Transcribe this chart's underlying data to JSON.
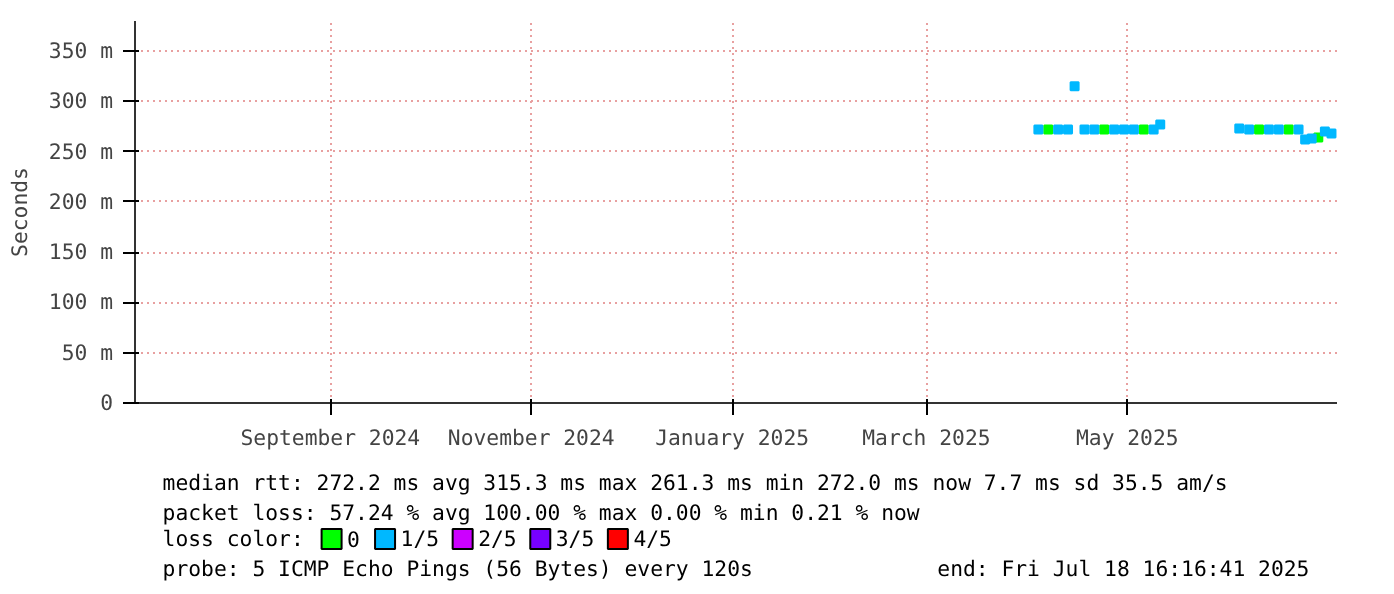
{
  "chart_data": {
    "type": "scatter",
    "ylabel": "Seconds",
    "xlim": [
      "2024-07-18T16:16",
      "2025-07-18T16:16"
    ],
    "xticks": [
      {
        "value": "2024-09-16",
        "label": "September 2024"
      },
      {
        "value": "2024-11-16",
        "label": "November 2024"
      },
      {
        "value": "2025-01-16",
        "label": "January 2025"
      },
      {
        "value": "2025-03-16",
        "label": "March 2025"
      },
      {
        "value": "2025-05-16",
        "label": "May 2025"
      }
    ],
    "ylim": [
      0,
      380
    ],
    "yticks": [
      {
        "value": 0,
        "label": "0"
      },
      {
        "value": 50,
        "label": "50 m"
      },
      {
        "value": 100,
        "label": "100 m"
      },
      {
        "value": 150,
        "label": "150 m"
      },
      {
        "value": 200,
        "label": "200 m"
      },
      {
        "value": 250,
        "label": "250 m"
      },
      {
        "value": 300,
        "label": "300 m"
      },
      {
        "value": 350,
        "label": "350 m"
      }
    ],
    "grid": true,
    "marker": "square",
    "legend": "bottom left",
    "legend_title": "loss color:",
    "series": [
      {
        "name": "0",
        "color": "#00ff00",
        "x": [
          "2025-04-22",
          "2025-05-09",
          "2025-05-21",
          "2025-06-25",
          "2025-07-04",
          "2025-07-13"
        ],
        "values": [
          272,
          272,
          272,
          272,
          272,
          264
        ]
      },
      {
        "name": "1/5",
        "color": "#00b8ff",
        "x": [
          "2025-04-19",
          "2025-04-25",
          "2025-04-28",
          "2025-04-30",
          "2025-05-03",
          "2025-05-06",
          "2025-05-12",
          "2025-05-15",
          "2025-05-18",
          "2025-05-24",
          "2025-05-26",
          "2025-06-19",
          "2025-06-22",
          "2025-06-28",
          "2025-07-01",
          "2025-07-07",
          "2025-07-09",
          "2025-07-11",
          "2025-07-15",
          "2025-07-17"
        ],
        "values": [
          272,
          272,
          272,
          315,
          272,
          272,
          272,
          272,
          272,
          272,
          277,
          273,
          272,
          272,
          272,
          272,
          262,
          263,
          270,
          268
        ]
      },
      {
        "name": "2/5",
        "color": "#cc00ff"
      },
      {
        "name": "3/5",
        "color": "#7700ff"
      },
      {
        "name": "4/5",
        "color": "#ff0000"
      }
    ],
    "annotations": [
      "median rtt:  272.2 ms avg  315.3 ms max  261.3 ms min  272.0 ms now  7.7 ms sd  35.5   am/s",
      "packet loss: 57.24 % avg  100.00 % max  0.00 % min  0.21 % now",
      "probe:       5 ICMP Echo Pings (56 Bytes) every 120s",
      "end: Fri Jul 18 16:16:41 2025"
    ]
  }
}
